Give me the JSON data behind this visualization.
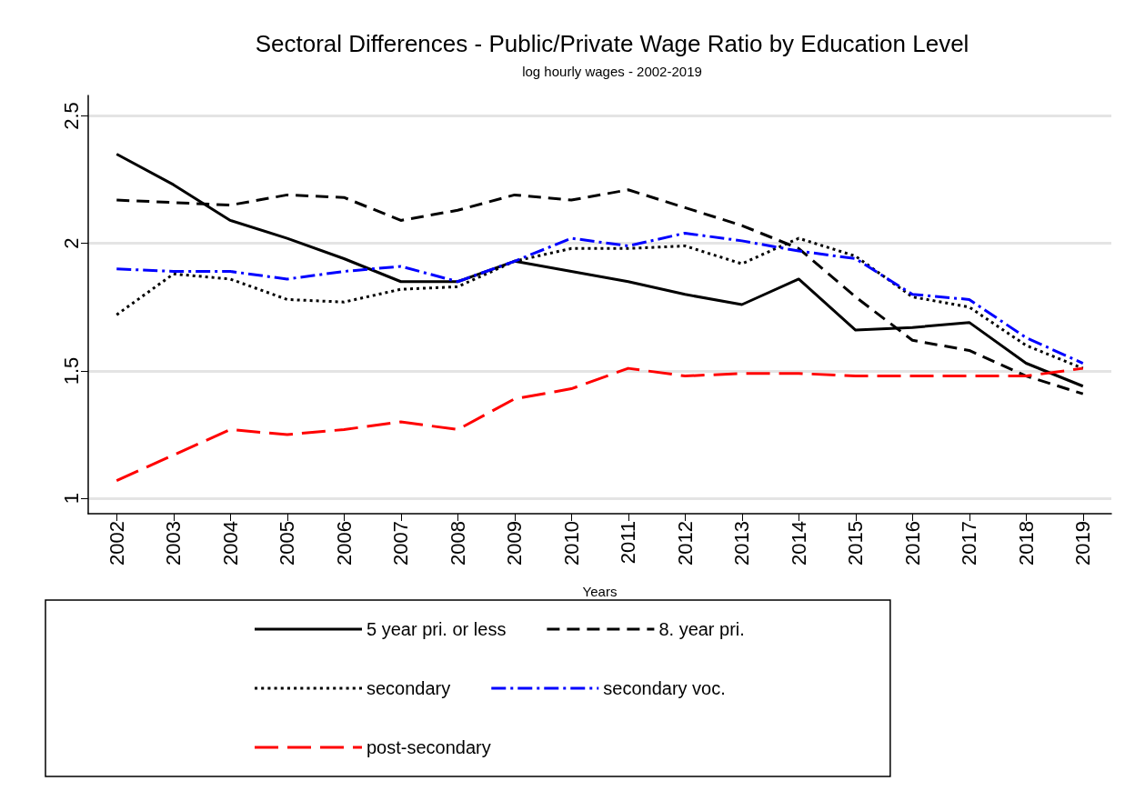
{
  "chart_data": {
    "type": "line",
    "title": "Sectoral Differences - Public/Private Wage Ratio by Education Level",
    "subtitle": "log hourly wages - 2002-2019",
    "xlabel": "Years",
    "categories": [
      "2002",
      "2003",
      "2004",
      "2005",
      "2006",
      "2007",
      "2008",
      "2009",
      "2010",
      "2011",
      "2012",
      "2013",
      "2014",
      "2015",
      "2016",
      "2017",
      "2018",
      "2019"
    ],
    "series": [
      {
        "name": "5 year pri. or less",
        "color": "#000000",
        "line_style": "solid",
        "values": [
          2.35,
          2.23,
          2.09,
          2.02,
          1.94,
          1.85,
          1.85,
          1.93,
          1.89,
          1.85,
          1.8,
          1.76,
          1.86,
          1.66,
          1.67,
          1.69,
          1.53,
          1.44
        ]
      },
      {
        "name": "8. year pri.",
        "color": "#000000",
        "line_style": "dashed",
        "values": [
          2.17,
          2.16,
          2.15,
          2.19,
          2.18,
          2.09,
          2.13,
          2.19,
          2.17,
          2.21,
          2.14,
          2.07,
          1.98,
          1.79,
          1.62,
          1.58,
          1.48,
          1.41
        ]
      },
      {
        "name": "secondary",
        "color": "#000000",
        "line_style": "dotted",
        "values": [
          1.72,
          1.88,
          1.86,
          1.78,
          1.77,
          1.82,
          1.83,
          1.93,
          1.98,
          1.98,
          1.99,
          1.92,
          2.02,
          1.95,
          1.79,
          1.75,
          1.6,
          1.51
        ]
      },
      {
        "name": "secondary voc.",
        "color": "#0000ff",
        "line_style": "dashdot",
        "values": [
          1.9,
          1.89,
          1.89,
          1.86,
          1.89,
          1.91,
          1.85,
          1.93,
          2.02,
          1.99,
          2.04,
          2.01,
          1.97,
          1.94,
          1.8,
          1.78,
          1.63,
          1.53
        ]
      },
      {
        "name": "post-secondary",
        "color": "#ff0000",
        "line_style": "longdash",
        "values": [
          1.07,
          1.17,
          1.27,
          1.25,
          1.27,
          1.3,
          1.27,
          1.39,
          1.43,
          1.51,
          1.48,
          1.49,
          1.49,
          1.48,
          1.48,
          1.48,
          1.48,
          1.51
        ]
      }
    ],
    "ylim": [
      0.94,
      2.58
    ],
    "yticks": [
      1,
      1.5,
      2,
      2.5
    ],
    "grid": "y",
    "legend": "bottom",
    "marker": "none"
  }
}
